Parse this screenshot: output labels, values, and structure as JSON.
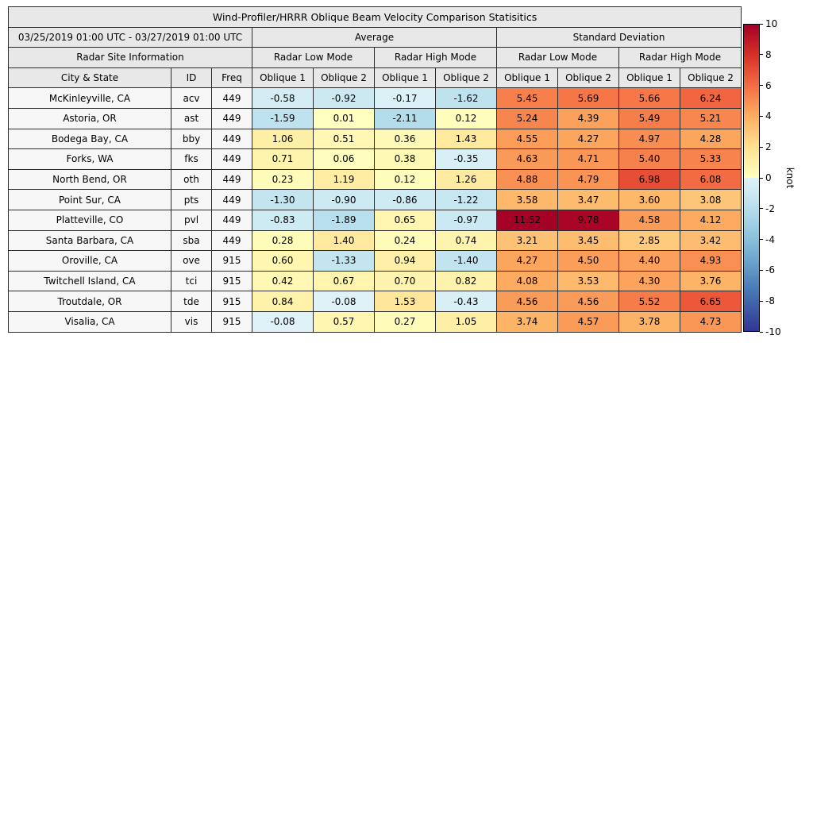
{
  "title": "Wind-Profiler/HRRR Oblique Beam Velocity Comparison Statisitics",
  "header": {
    "date_range": "03/25/2019 01:00 UTC - 03/27/2019 01:00 UTC",
    "group_average": "Average",
    "group_std": "Standard Deviation",
    "site_info": "Radar Site Information",
    "low_mode": "Radar Low Mode",
    "high_mode": "Radar High Mode",
    "col_city": "City & State",
    "col_id": "ID",
    "col_freq": "Freq",
    "col_oblique1": "Oblique 1",
    "col_oblique2": "Oblique 2"
  },
  "colorbar": {
    "label": "knot",
    "min": -10,
    "max": 10,
    "ticks": [
      10,
      8,
      6,
      4,
      2,
      0,
      -2,
      -4,
      -6,
      -8,
      -10
    ],
    "colormap_stops": [
      "#313695",
      "#4575b4",
      "#74add1",
      "#abd9e9",
      "#e0f3f8",
      "#ffffbf",
      "#fee090",
      "#fdae61",
      "#f46d43",
      "#d73027",
      "#a50026"
    ]
  },
  "chart_data": {
    "type": "heatmap-table",
    "title": "Wind-Profiler/HRRR Oblique Beam Velocity Comparison Statisitics",
    "date_range": "03/25/2019 01:00 UTC - 03/27/2019 01:00 UTC",
    "unit": "knot",
    "color_scale_range": [
      -10,
      10
    ],
    "column_groups": [
      "Average",
      "Standard Deviation"
    ],
    "mode_groups": [
      "Radar Low Mode",
      "Radar High Mode"
    ],
    "value_columns": [
      "avg_low_oblique1",
      "avg_low_oblique2",
      "avg_high_oblique1",
      "avg_high_oblique2",
      "sd_low_oblique1",
      "sd_low_oblique2",
      "sd_high_oblique1",
      "sd_high_oblique2"
    ],
    "rows": [
      {
        "city": "McKinleyville, CA",
        "id": "acv",
        "freq": "449",
        "values": [
          -0.58,
          -0.92,
          -0.17,
          -1.62,
          5.45,
          5.69,
          5.66,
          6.24
        ]
      },
      {
        "city": "Astoria, OR",
        "id": "ast",
        "freq": "449",
        "values": [
          -1.59,
          0.01,
          -2.11,
          0.12,
          5.24,
          4.39,
          5.49,
          5.21
        ]
      },
      {
        "city": "Bodega Bay, CA",
        "id": "bby",
        "freq": "449",
        "values": [
          1.06,
          0.51,
          0.36,
          1.43,
          4.55,
          4.27,
          4.97,
          4.28
        ]
      },
      {
        "city": "Forks, WA",
        "id": "fks",
        "freq": "449",
        "values": [
          0.71,
          0.06,
          0.38,
          -0.35,
          4.63,
          4.71,
          5.4,
          5.33
        ]
      },
      {
        "city": "North Bend, OR",
        "id": "oth",
        "freq": "449",
        "values": [
          0.23,
          1.19,
          0.12,
          1.26,
          4.88,
          4.79,
          6.98,
          6.08
        ]
      },
      {
        "city": "Point Sur, CA",
        "id": "pts",
        "freq": "449",
        "values": [
          -1.3,
          -0.9,
          -0.86,
          -1.22,
          3.58,
          3.47,
          3.6,
          3.08
        ]
      },
      {
        "city": "Platteville, CO",
        "id": "pvl",
        "freq": "449",
        "values": [
          -0.83,
          -1.89,
          0.65,
          -0.97,
          11.52,
          9.78,
          4.58,
          4.12
        ]
      },
      {
        "city": "Santa Barbara, CA",
        "id": "sba",
        "freq": "449",
        "values": [
          0.28,
          1.4,
          0.24,
          0.74,
          3.21,
          3.45,
          2.85,
          3.42
        ]
      },
      {
        "city": "Oroville, CA",
        "id": "ove",
        "freq": "915",
        "values": [
          0.6,
          -1.33,
          0.94,
          -1.4,
          4.27,
          4.5,
          4.4,
          4.93
        ]
      },
      {
        "city": "Twitchell Island, CA",
        "id": "tci",
        "freq": "915",
        "values": [
          0.42,
          0.67,
          0.7,
          0.82,
          4.08,
          3.53,
          4.3,
          3.76
        ]
      },
      {
        "city": "Troutdale, OR",
        "id": "tde",
        "freq": "915",
        "values": [
          0.84,
          -0.08,
          1.53,
          -0.43,
          4.56,
          4.56,
          5.52,
          6.65
        ]
      },
      {
        "city": "Visalia, CA",
        "id": "vis",
        "freq": "915",
        "values": [
          -0.08,
          0.57,
          0.27,
          1.05,
          3.74,
          4.57,
          3.78,
          4.73
        ]
      }
    ]
  }
}
